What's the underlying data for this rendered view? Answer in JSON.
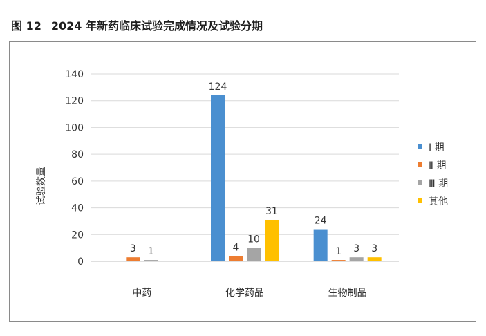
{
  "figure": {
    "number": "图 12",
    "title": "2024 年新药临床试验完成情况及试验分期"
  },
  "chart_data": {
    "type": "bar",
    "title": "",
    "xlabel": "",
    "ylabel": "试验数量",
    "ylim": [
      0,
      140
    ],
    "yticks": [
      0,
      20,
      40,
      60,
      80,
      100,
      120,
      140
    ],
    "grid": true,
    "legend_position": "right",
    "categories": [
      "中药",
      "化学药品",
      "生物制品"
    ],
    "series": [
      {
        "name": "Ⅰ 期",
        "color": "#4a8fd0",
        "values": [
          0,
          124,
          24
        ],
        "labels": [
          "",
          "124",
          "24"
        ]
      },
      {
        "name": "Ⅱ 期",
        "color": "#ed7d31",
        "values": [
          3,
          4,
          1
        ],
        "labels": [
          "3",
          "4",
          "1"
        ]
      },
      {
        "name": "Ⅲ 期",
        "color": "#a5a5a5",
        "values": [
          1,
          10,
          3
        ],
        "labels": [
          "1",
          "10",
          "3"
        ]
      },
      {
        "name": "其他",
        "color": "#ffc000",
        "values": [
          0,
          31,
          3
        ],
        "labels": [
          "",
          "31",
          "3"
        ]
      }
    ]
  }
}
